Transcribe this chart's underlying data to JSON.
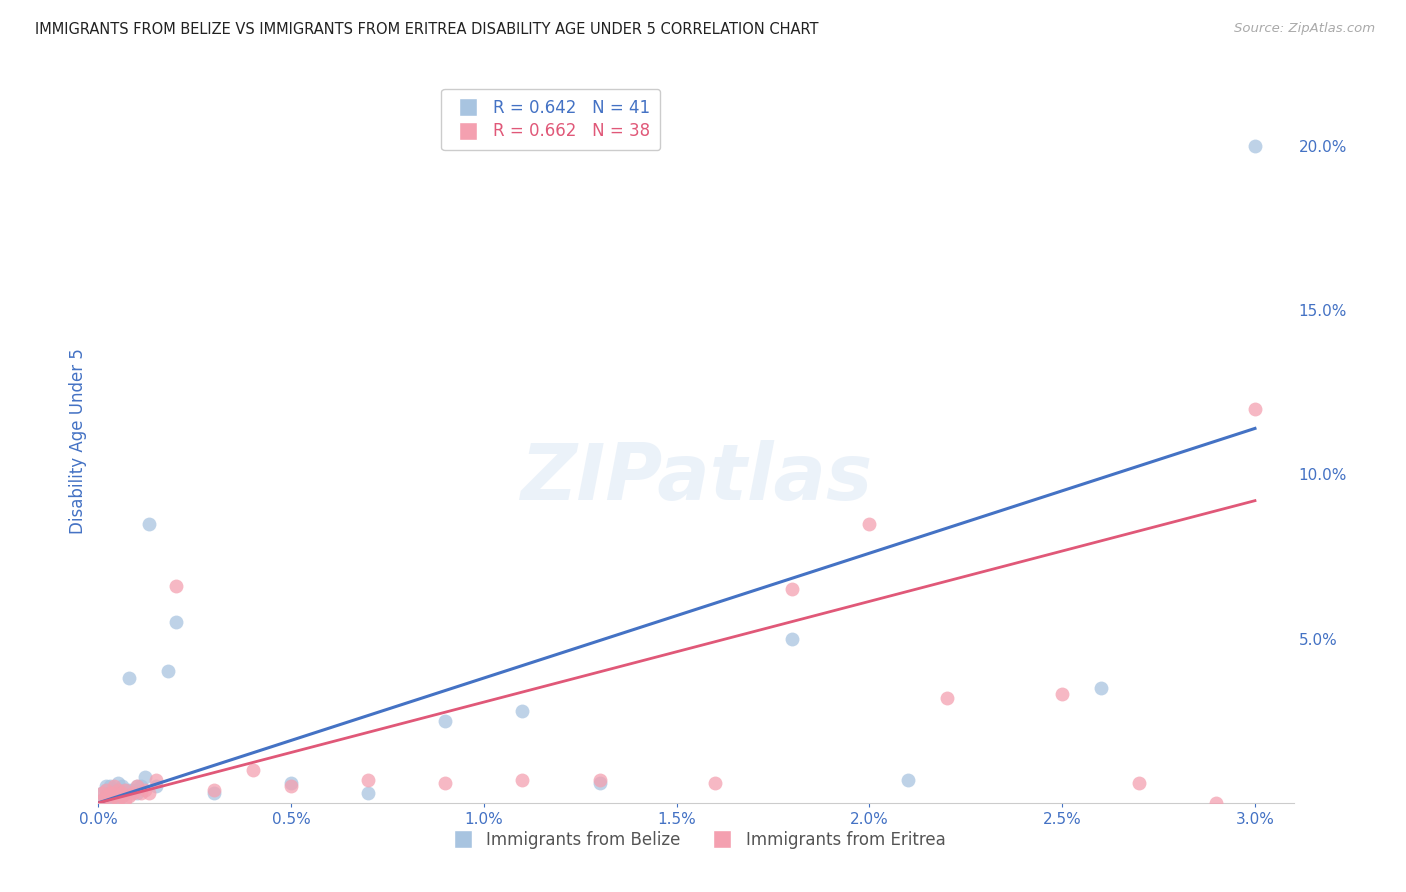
{
  "title": "IMMIGRANTS FROM BELIZE VS IMMIGRANTS FROM ERITREA DISABILITY AGE UNDER 5 CORRELATION CHART",
  "source": "Source: ZipAtlas.com",
  "ylabel": "Disability Age Under 5",
  "belize_R": 0.642,
  "belize_N": 41,
  "eritrea_R": 0.662,
  "eritrea_N": 38,
  "belize_color": "#a8c4e0",
  "eritrea_color": "#f4a0b0",
  "belize_line_color": "#4472c4",
  "eritrea_line_color": "#e05878",
  "belize_x": [
    0.0001,
    0.0001,
    0.0002,
    0.0002,
    0.0002,
    0.0003,
    0.0003,
    0.0003,
    0.0003,
    0.0004,
    0.0004,
    0.0004,
    0.0005,
    0.0005,
    0.0005,
    0.0005,
    0.0006,
    0.0006,
    0.0007,
    0.0007,
    0.0008,
    0.0008,
    0.0009,
    0.001,
    0.001,
    0.0011,
    0.0012,
    0.0013,
    0.0015,
    0.0018,
    0.002,
    0.003,
    0.005,
    0.007,
    0.009,
    0.011,
    0.013,
    0.018,
    0.021,
    0.026,
    0.03
  ],
  "belize_y": [
    0.001,
    0.003,
    0.002,
    0.004,
    0.005,
    0.001,
    0.002,
    0.003,
    0.005,
    0.001,
    0.003,
    0.004,
    0.002,
    0.003,
    0.004,
    0.006,
    0.002,
    0.005,
    0.003,
    0.004,
    0.004,
    0.038,
    0.004,
    0.003,
    0.005,
    0.005,
    0.008,
    0.085,
    0.005,
    0.04,
    0.055,
    0.003,
    0.006,
    0.003,
    0.025,
    0.028,
    0.006,
    0.05,
    0.007,
    0.035,
    0.2
  ],
  "eritrea_x": [
    0.0001,
    0.0001,
    0.0002,
    0.0002,
    0.0003,
    0.0003,
    0.0004,
    0.0004,
    0.0004,
    0.0005,
    0.0005,
    0.0006,
    0.0006,
    0.0007,
    0.0007,
    0.0008,
    0.0009,
    0.001,
    0.0011,
    0.0012,
    0.0013,
    0.0015,
    0.002,
    0.003,
    0.004,
    0.005,
    0.007,
    0.009,
    0.011,
    0.013,
    0.016,
    0.018,
    0.02,
    0.022,
    0.025,
    0.027,
    0.029,
    0.03
  ],
  "eritrea_y": [
    0.001,
    0.003,
    0.002,
    0.004,
    0.001,
    0.003,
    0.002,
    0.003,
    0.005,
    0.001,
    0.004,
    0.002,
    0.003,
    0.001,
    0.004,
    0.002,
    0.003,
    0.005,
    0.003,
    0.004,
    0.003,
    0.007,
    0.066,
    0.004,
    0.01,
    0.005,
    0.007,
    0.006,
    0.007,
    0.007,
    0.006,
    0.065,
    0.085,
    0.032,
    0.033,
    0.006,
    0.0,
    0.12
  ],
  "belize_line": [
    0.0,
    0.0,
    0.03,
    0.114
  ],
  "eritrea_line": [
    0.0,
    0.0,
    0.03,
    0.092
  ],
  "xlim": [
    0.0,
    0.031
  ],
  "ylim": [
    0.0,
    0.22
  ],
  "right_yticks": [
    0.0,
    0.05,
    0.1,
    0.15,
    0.2
  ],
  "right_yticklabels": [
    "",
    "5.0%",
    "10.0%",
    "15.0%",
    "20.0%"
  ],
  "bottom_xticks": [
    0.0,
    0.005,
    0.01,
    0.015,
    0.02,
    0.025,
    0.03
  ],
  "bottom_xticklabels": [
    "0.0%",
    "0.5%",
    "1.0%",
    "1.5%",
    "2.0%",
    "2.5%",
    "3.0%"
  ],
  "background_color": "#ffffff",
  "grid_color": "#d8dff0",
  "title_color": "#222222",
  "axis_label_color": "#4472c4",
  "tick_color": "#4472c4",
  "legend_text_belize": "R = 0.642   N = 41",
  "legend_text_eritrea": "R = 0.662   N = 38",
  "legend_label_belize": "Immigrants from Belize",
  "legend_label_eritrea": "Immigrants from Eritrea"
}
